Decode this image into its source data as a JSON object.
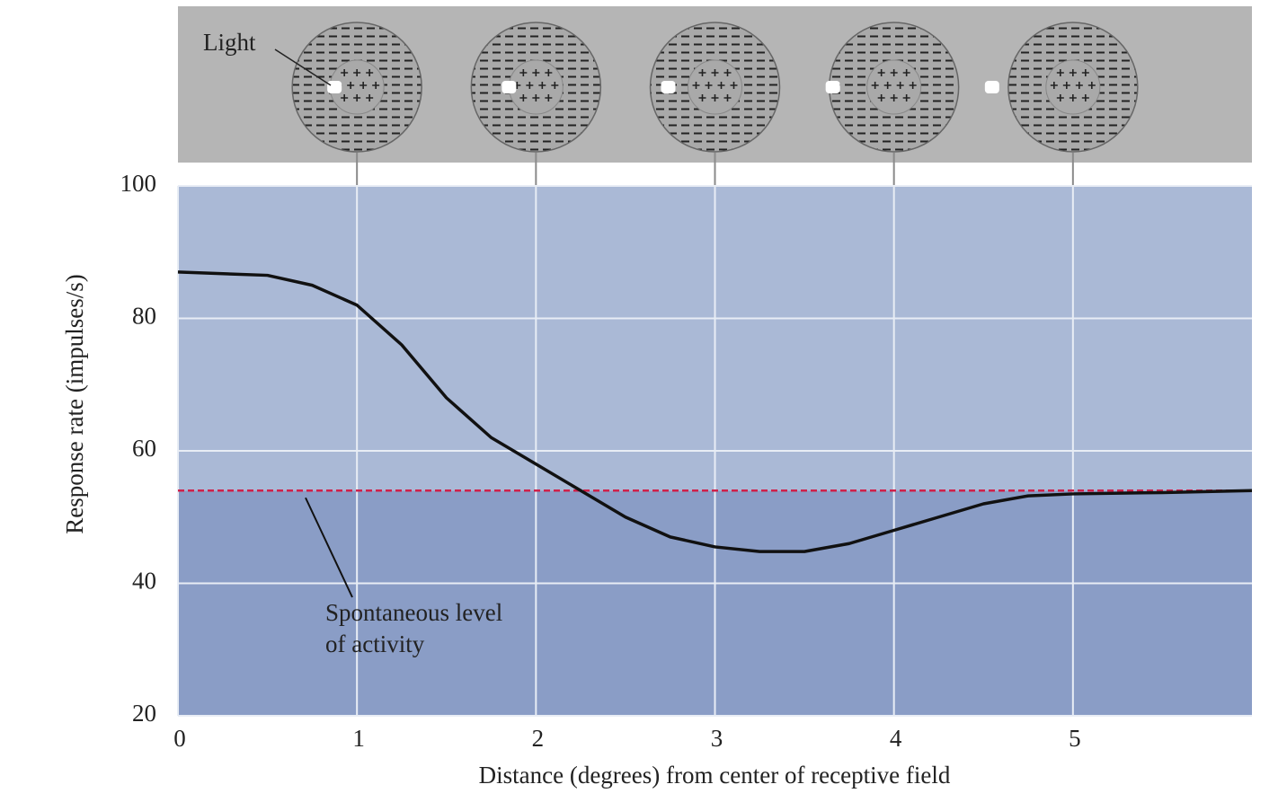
{
  "chart_data": {
    "type": "line",
    "x_label": "Distance (degrees) from center of receptive field",
    "y_label": "Response rate (impulses/s)",
    "stimulus_label": "Light",
    "x": [
      0,
      0.5,
      0.75,
      1,
      1.25,
      1.5,
      1.75,
      2,
      2.25,
      2.5,
      2.75,
      3,
      3.25,
      3.5,
      3.75,
      4,
      4.25,
      4.5,
      4.75,
      5,
      5.5,
      6
    ],
    "series": [
      {
        "color": "#111111",
        "values": [
          87,
          86.5,
          85,
          82,
          76,
          68,
          62,
          58,
          54,
          50,
          47,
          45.5,
          44.8,
          44.8,
          46,
          48,
          50,
          52,
          53.2,
          53.5,
          53.7,
          54
        ]
      }
    ],
    "reference_line": {
      "value": 54,
      "color": "#d0204a",
      "label": [
        "Spontaneous level",
        "of activity"
      ]
    },
    "xlim": [
      0,
      6
    ],
    "xticks": [
      0,
      1,
      2,
      3,
      4,
      5
    ],
    "ylim": [
      20,
      100
    ],
    "yticks": [
      20,
      40,
      60,
      80,
      100
    ],
    "grid": true
  }
}
